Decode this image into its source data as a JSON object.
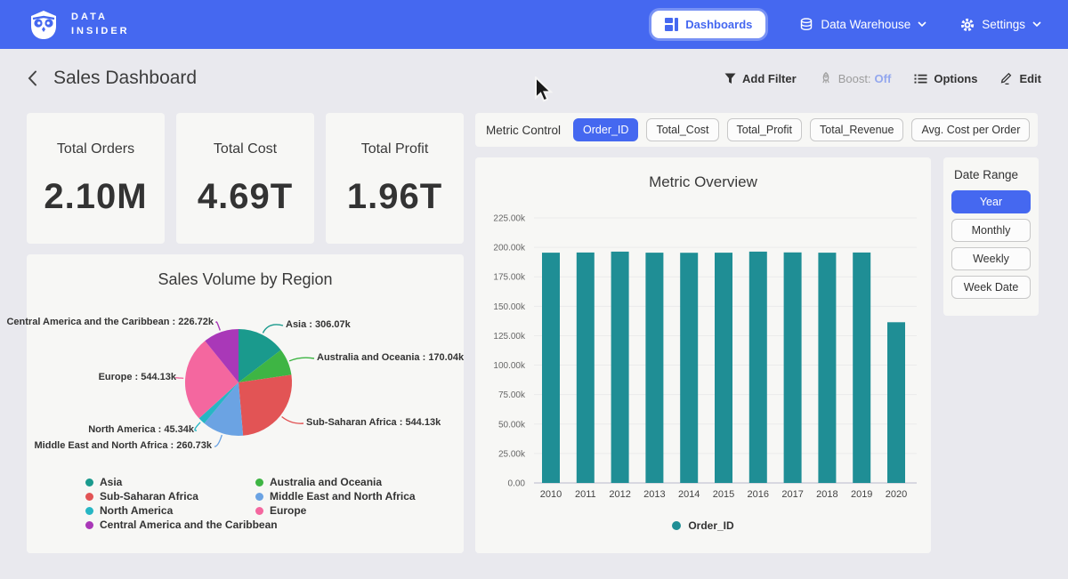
{
  "navbar": {
    "brand_line1": "DATA",
    "brand_line2": "INSIDER",
    "dashboards_label": "Dashboards",
    "data_warehouse_label": "Data Warehouse",
    "settings_label": "Settings"
  },
  "header": {
    "title": "Sales Dashboard",
    "add_filter_label": "Add Filter",
    "boost_label": "Boost:",
    "boost_value": "Off",
    "options_label": "Options",
    "edit_label": "Edit"
  },
  "kpis": [
    {
      "label": "Total Orders",
      "value": "2.10M"
    },
    {
      "label": "Total Cost",
      "value": "4.69T"
    },
    {
      "label": "Total Profit",
      "value": "1.96T"
    }
  ],
  "metric_control": {
    "label": "Metric Control",
    "buttons": [
      {
        "label": "Order_ID",
        "selected": true
      },
      {
        "label": "Total_Cost",
        "selected": false
      },
      {
        "label": "Total_Profit",
        "selected": false
      },
      {
        "label": "Total_Revenue",
        "selected": false
      },
      {
        "label": "Avg. Cost per Order",
        "selected": false
      }
    ]
  },
  "date_range": {
    "label": "Date Range",
    "buttons": [
      {
        "label": "Year",
        "selected": true
      },
      {
        "label": "Monthly",
        "selected": false
      },
      {
        "label": "Weekly",
        "selected": false
      },
      {
        "label": "Week Date",
        "selected": false
      }
    ]
  },
  "colors": {
    "navbar_blue": "#4568f0",
    "selected_blue": "#4568f0",
    "boost_off_blue": "#93a7ee",
    "bar_teal": "#1f8e95"
  },
  "icons": {
    "owl-logo": "owl",
    "dashboards-icon": "grid",
    "data-warehouse-icon": "database",
    "settings-icon": "gear",
    "chevron-down-icon": "v",
    "back-icon": "<",
    "add-filter-icon": "funnel",
    "boost-icon": "rocket",
    "options-icon": "list",
    "edit-icon": "pencil",
    "cursor": "arrow-pointer"
  },
  "chart_data": [
    {
      "id": "sales_volume_by_region",
      "type": "pie",
      "title": "Sales Volume by Region",
      "value_unit": "k",
      "slices": [
        {
          "name": "Asia",
          "value": 306.07,
          "display": "Asia : 306.07k",
          "color": "#1a9a8d"
        },
        {
          "name": "Australia and Oceania",
          "value": 170.04,
          "display": "Australia and Oceania : 170.04k",
          "color": "#3eb544"
        },
        {
          "name": "Sub-Saharan Africa",
          "value": 544.13,
          "display": "Sub-Saharan Africa : 544.13k",
          "color": "#e25455"
        },
        {
          "name": "Middle East and North Africa",
          "value": 260.73,
          "display": "Middle East and North Africa : 260.73k",
          "color": "#6ba3e3"
        },
        {
          "name": "North America",
          "value": 45.34,
          "display": "North America : 45.34k",
          "color": "#27b6c4"
        },
        {
          "name": "Europe",
          "value": 544.13,
          "display": "Europe : 544.13k",
          "color": "#f4679f"
        },
        {
          "name": "Central America and the Caribbean",
          "value": 226.72,
          "display": "Central America and the Caribbean : 226.72k",
          "color": "#a938b8"
        }
      ],
      "legend_columns": [
        [
          "Asia",
          "Sub-Saharan Africa",
          "North America",
          "Central America and the Caribbean"
        ],
        [
          "Australia and Oceania",
          "Middle East and North Africa",
          "Europe"
        ]
      ],
      "legend_position": "bottom"
    },
    {
      "id": "metric_overview",
      "type": "bar",
      "title": "Metric Overview",
      "categories": [
        "2010",
        "2011",
        "2012",
        "2013",
        "2014",
        "2015",
        "2016",
        "2017",
        "2018",
        "2019",
        "2020"
      ],
      "values_k": [
        195.5,
        195.6,
        196.4,
        195.5,
        195.4,
        195.5,
        196.4,
        195.7,
        195.5,
        195.6,
        136.4
      ],
      "ylim_k": [
        0,
        225
      ],
      "yticks": [
        "0.00",
        "25.00k",
        "50.00k",
        "75.00k",
        "100.00k",
        "125.00k",
        "150.00k",
        "175.00k",
        "200.00k",
        "225.00k"
      ],
      "grid": true,
      "legend": [
        {
          "label": "Order_ID",
          "color": "#1f8e95"
        }
      ],
      "legend_position": "bottom"
    }
  ]
}
